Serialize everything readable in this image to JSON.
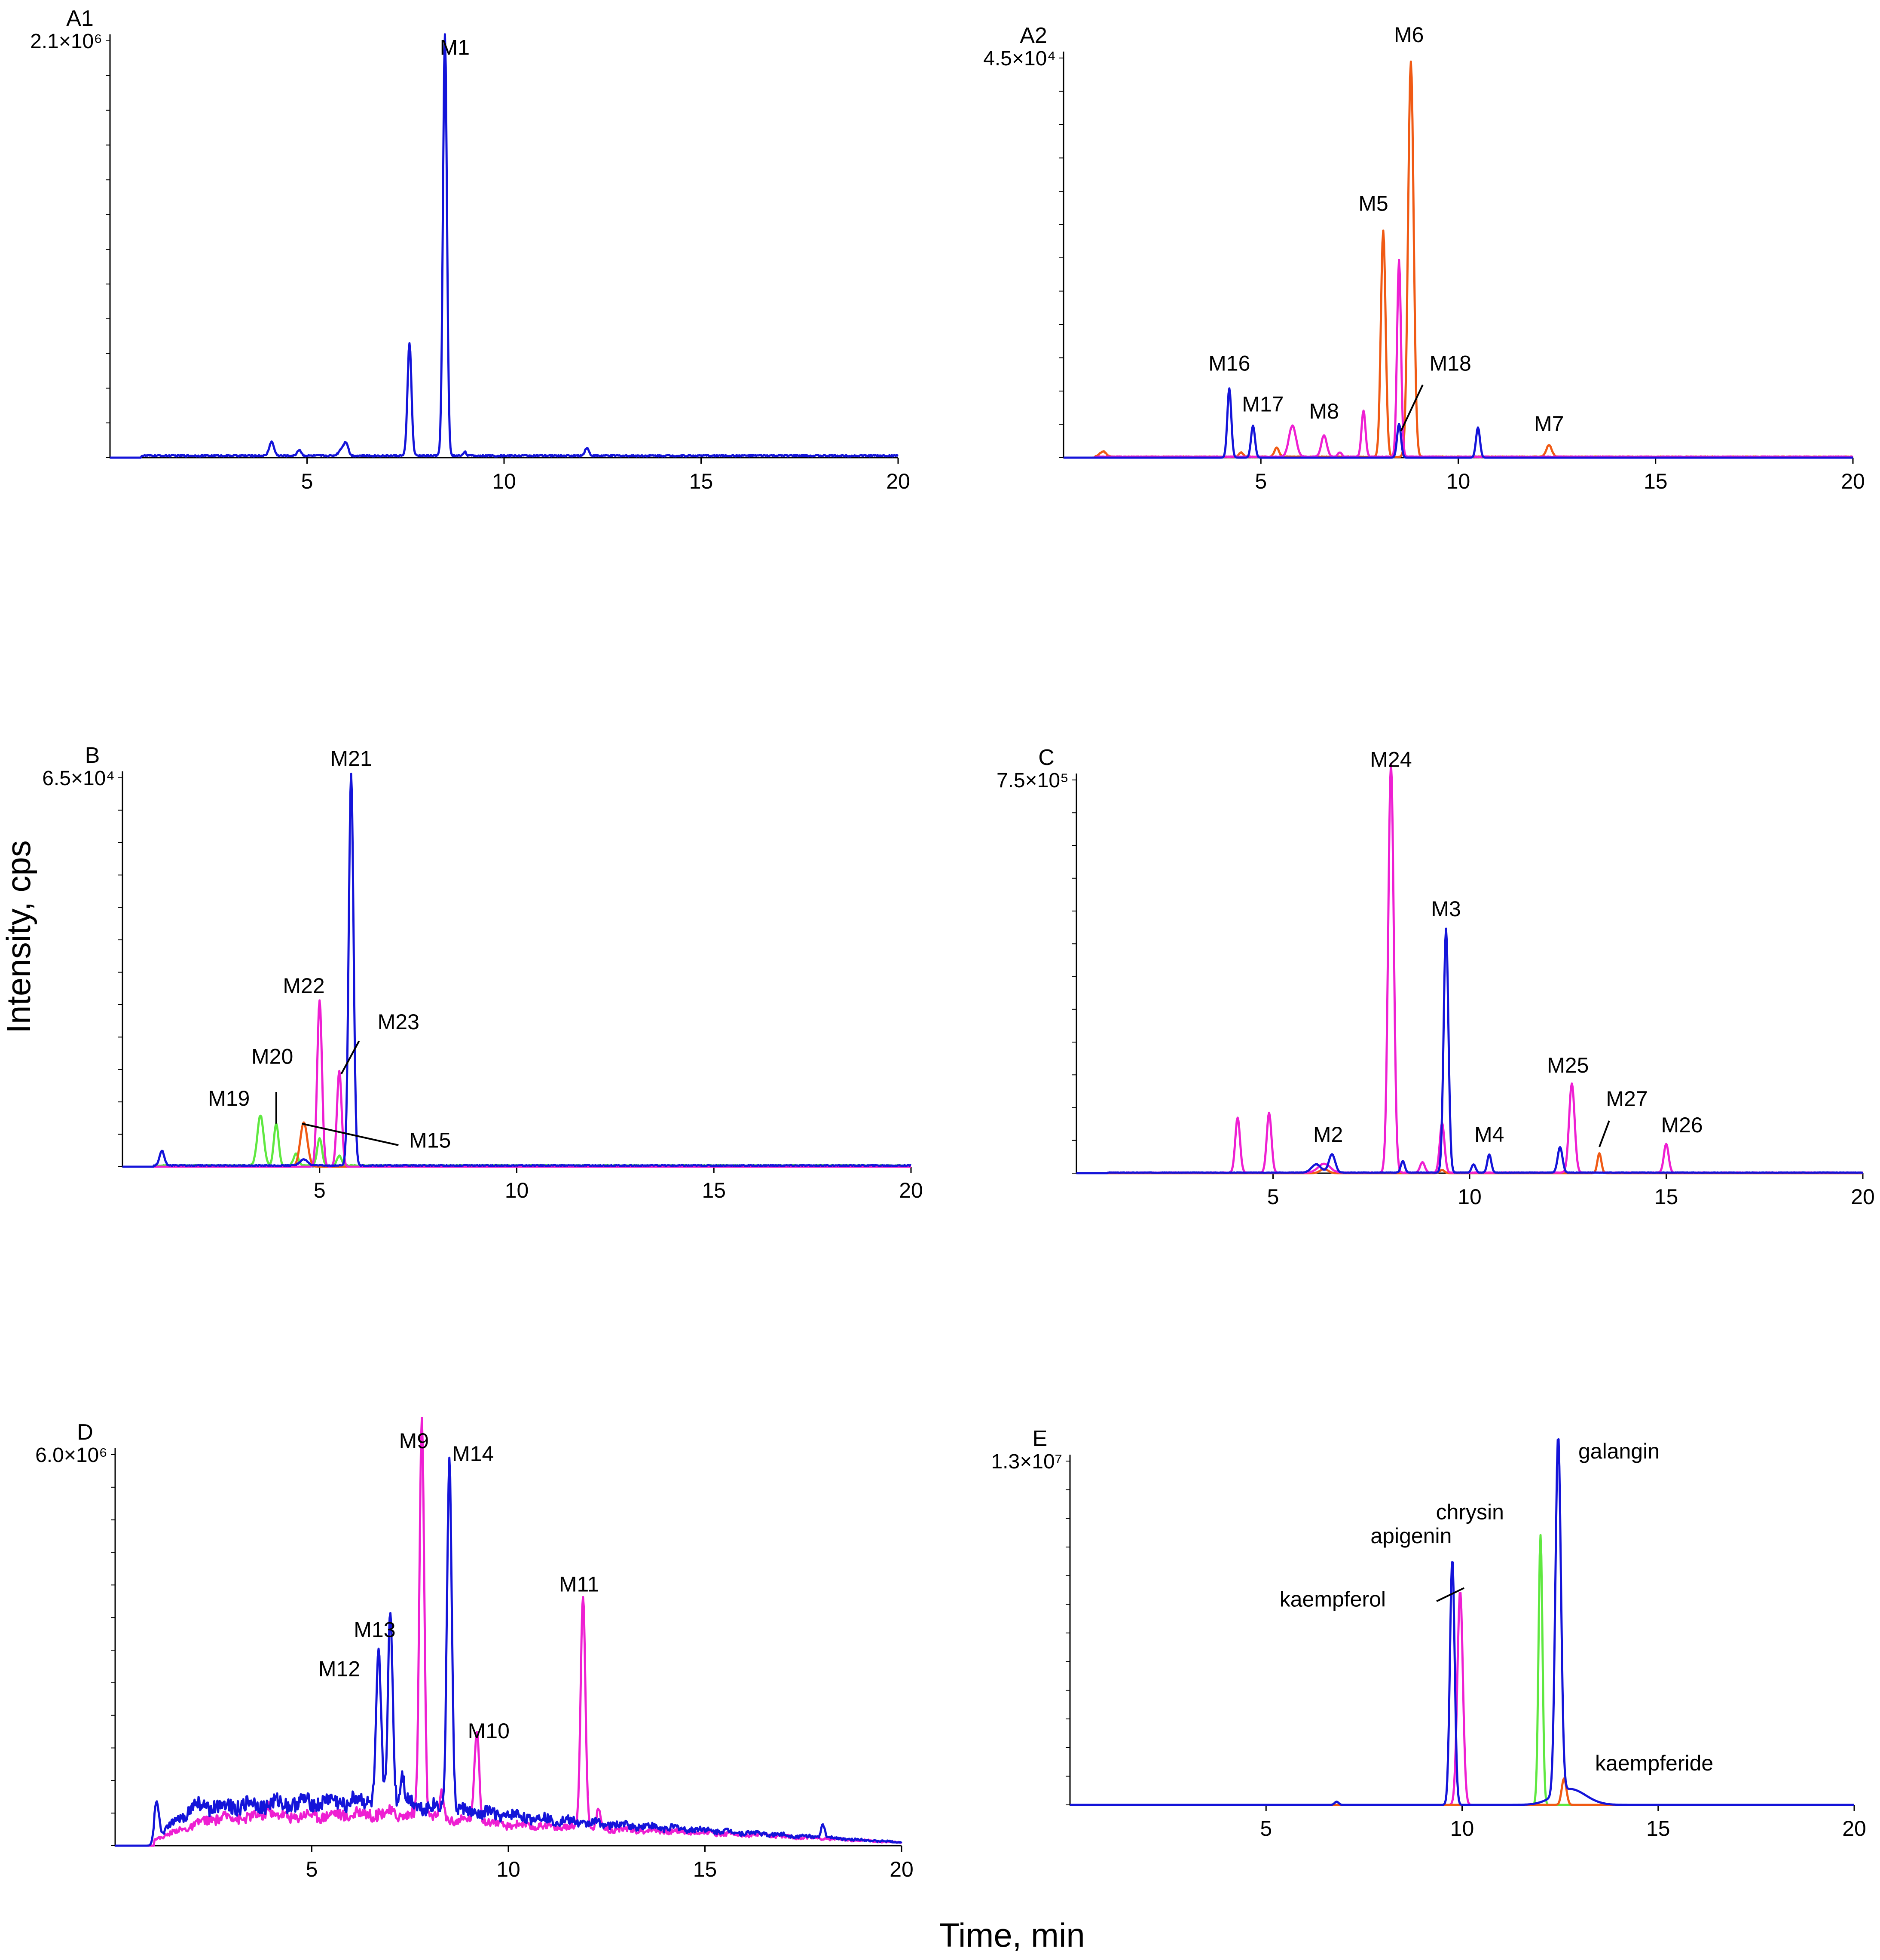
{
  "figure": {
    "y_axis_title": "Intensity, cps",
    "x_axis_title": "Time, min"
  },
  "colors": {
    "blue": "#1414d9",
    "orange": "#f05a14",
    "magenta": "#ee1fd2",
    "green": "#5fe840",
    "axis": "#000000"
  },
  "chart_data": [
    {
      "id": "A1",
      "type": "line",
      "panel_label": "A1",
      "ymax_label": "2.1×10⁶",
      "xlabel": "Time, min",
      "ylabel": "Intensity, cps",
      "xlim": [
        0,
        20
      ],
      "ylim": [
        0,
        2.1
      ],
      "x_ticks": [
        5,
        10,
        15,
        20
      ],
      "series": [
        {
          "name": "trace-blue",
          "color": "blue",
          "baseline": 0.01,
          "peaks": [
            [
              4.1,
              0.07,
              0.06
            ],
            [
              4.8,
              0.03,
              0.05
            ],
            [
              5.9,
              0.04,
              0.08
            ],
            [
              6.0,
              0.05,
              0.05
            ],
            [
              7.6,
              0.57,
              0.05
            ],
            [
              8.5,
              2.12,
              0.05
            ],
            [
              9.0,
              0.02,
              0.04
            ],
            [
              12.1,
              0.04,
              0.05
            ]
          ]
        }
      ],
      "labels": [
        {
          "text": "M1",
          "x": 8.75,
          "y": 2.03
        }
      ],
      "leaders": []
    },
    {
      "id": "A2",
      "type": "line",
      "panel_label": "A2",
      "ymax_label": "4.5×10⁴",
      "xlabel": "Time, min",
      "ylabel": "Intensity, cps",
      "xlim": [
        0,
        20
      ],
      "ylim": [
        0,
        4.5
      ],
      "x_ticks": [
        5,
        10,
        15,
        20
      ],
      "series": [
        {
          "name": "trace-orange",
          "color": "orange",
          "baseline": 0.01,
          "peaks": [
            [
              1.0,
              0.06,
              0.08
            ],
            [
              4.5,
              0.05,
              0.05
            ],
            [
              5.4,
              0.1,
              0.06
            ],
            [
              8.1,
              2.55,
              0.06
            ],
            [
              8.8,
              4.45,
              0.07
            ],
            [
              12.3,
              0.13,
              0.07
            ]
          ]
        },
        {
          "name": "trace-magenta",
          "color": "magenta",
          "baseline": 0.01,
          "peaks": [
            [
              5.8,
              0.35,
              0.09
            ],
            [
              6.6,
              0.24,
              0.07
            ],
            [
              7.0,
              0.05,
              0.05
            ],
            [
              7.6,
              0.52,
              0.05
            ],
            [
              8.5,
              2.22,
              0.05
            ]
          ]
        },
        {
          "name": "trace-blue",
          "color": "blue",
          "baseline": 0.0,
          "peaks": [
            [
              4.2,
              0.78,
              0.05
            ],
            [
              4.8,
              0.36,
              0.05
            ],
            [
              8.5,
              0.38,
              0.05
            ],
            [
              10.5,
              0.34,
              0.05
            ]
          ]
        }
      ],
      "labels": [
        {
          "text": "M6",
          "x": 8.75,
          "y": 4.68
        },
        {
          "text": "M5",
          "x": 7.85,
          "y": 2.78
        },
        {
          "text": "M16",
          "x": 4.2,
          "y": 0.98
        },
        {
          "text": "M17",
          "x": 5.05,
          "y": 0.52
        },
        {
          "text": "M8",
          "x": 6.6,
          "y": 0.44
        },
        {
          "text": "M18",
          "x": 9.8,
          "y": 0.98
        },
        {
          "text": "M7",
          "x": 12.3,
          "y": 0.3
        }
      ],
      "leaders": [
        [
          [
            9.1,
            0.82
          ],
          [
            8.55,
            0.3
          ]
        ]
      ]
    },
    {
      "id": "B",
      "type": "line",
      "panel_label": "B",
      "ymax_label": "6.5×10⁴",
      "xlabel": "Time, min",
      "ylabel": "Intensity, cps",
      "xlim": [
        0,
        20
      ],
      "ylim": [
        0,
        6.5
      ],
      "x_ticks": [
        5,
        10,
        15,
        20
      ],
      "series": [
        {
          "name": "trace-green",
          "color": "green",
          "baseline": 0.02,
          "peaks": [
            [
              3.5,
              0.84,
              0.08
            ],
            [
              3.9,
              0.7,
              0.06
            ],
            [
              4.4,
              0.2,
              0.06
            ],
            [
              5.0,
              0.46,
              0.06
            ],
            [
              5.5,
              0.16,
              0.06
            ]
          ]
        },
        {
          "name": "trace-orange",
          "color": "orange",
          "baseline": 0.0,
          "peaks": [
            [
              4.6,
              0.74,
              0.09
            ]
          ]
        },
        {
          "name": "trace-magenta",
          "color": "magenta",
          "baseline": 0.0,
          "peaks": [
            [
              5.0,
              2.78,
              0.06
            ],
            [
              5.5,
              1.6,
              0.06
            ]
          ]
        },
        {
          "name": "trace-blue",
          "color": "blue",
          "baseline": 0.02,
          "peaks": [
            [
              1.0,
              0.25,
              0.06
            ],
            [
              4.6,
              0.1,
              0.1
            ],
            [
              5.8,
              6.55,
              0.06
            ]
          ]
        }
      ],
      "labels": [
        {
          "text": "M21",
          "x": 5.8,
          "y": 6.7
        },
        {
          "text": "M22",
          "x": 4.6,
          "y": 2.9
        },
        {
          "text": "M23",
          "x": 7.0,
          "y": 2.3
        },
        {
          "text": "M20",
          "x": 3.8,
          "y": 1.72
        },
        {
          "text": "M19",
          "x": 2.7,
          "y": 1.02
        },
        {
          "text": "M15",
          "x": 7.8,
          "y": 0.32
        }
      ],
      "leaders": [
        [
          [
            6.0,
            2.1
          ],
          [
            5.55,
            1.55
          ]
        ],
        [
          [
            3.9,
            1.25
          ],
          [
            3.9,
            0.72
          ]
        ],
        [
          [
            7.0,
            0.36
          ],
          [
            4.55,
            0.72
          ]
        ]
      ]
    },
    {
      "id": "C",
      "type": "line",
      "panel_label": "C",
      "ymax_label": "7.5×10⁵",
      "xlabel": "Time, min",
      "ylabel": "Intensity, cps",
      "xlim": [
        0,
        20
      ],
      "ylim": [
        0,
        7.5
      ],
      "x_ticks": [
        5,
        10,
        15,
        20
      ],
      "series": [
        {
          "name": "trace-orange",
          "color": "orange",
          "baseline": 0.0,
          "peaks": [
            [
              6.3,
              0.08,
              0.1
            ],
            [
              9.3,
              0.06,
              0.06
            ],
            [
              13.3,
              0.38,
              0.05
            ]
          ]
        },
        {
          "name": "trace-magenta",
          "color": "magenta",
          "baseline": 0.01,
          "peaks": [
            [
              4.1,
              1.05,
              0.06
            ],
            [
              4.9,
              1.14,
              0.06
            ],
            [
              6.3,
              0.17,
              0.15
            ],
            [
              8.0,
              7.8,
              0.07
            ],
            [
              8.8,
              0.2,
              0.06
            ],
            [
              9.3,
              0.95,
              0.06
            ],
            [
              12.6,
              1.7,
              0.07
            ],
            [
              15.0,
              0.55,
              0.06
            ]
          ]
        },
        {
          "name": "trace-blue",
          "color": "blue",
          "baseline": 0.01,
          "peaks": [
            [
              6.1,
              0.16,
              0.12
            ],
            [
              6.5,
              0.35,
              0.08
            ],
            [
              8.3,
              0.22,
              0.05
            ],
            [
              9.4,
              4.65,
              0.06
            ],
            [
              10.1,
              0.16,
              0.05
            ],
            [
              10.5,
              0.35,
              0.05
            ],
            [
              12.3,
              0.49,
              0.06
            ]
          ]
        }
      ],
      "labels": [
        {
          "text": "M24",
          "x": 8.0,
          "y": 7.75
        },
        {
          "text": "M3",
          "x": 9.4,
          "y": 4.9
        },
        {
          "text": "M25",
          "x": 12.5,
          "y": 1.92
        },
        {
          "text": "M27",
          "x": 14.0,
          "y": 1.28
        },
        {
          "text": "M4",
          "x": 10.5,
          "y": 0.6
        },
        {
          "text": "M2",
          "x": 6.4,
          "y": 0.6
        },
        {
          "text": "M26",
          "x": 15.4,
          "y": 0.78
        }
      ],
      "leaders": [
        [
          [
            13.55,
            1.0
          ],
          [
            13.3,
            0.5
          ]
        ]
      ]
    },
    {
      "id": "D",
      "type": "line",
      "panel_label": "D",
      "ymax_label": "6.0×10⁶",
      "xlabel": "Time, min",
      "ylabel": "Intensity, cps",
      "xlim": [
        0,
        20
      ],
      "ylim": [
        0,
        6.0
      ],
      "x_ticks": [
        5,
        10,
        15,
        20
      ],
      "series": [
        {
          "name": "trace-magenta",
          "color": "magenta",
          "noise": [
            [
              1.0,
              0.1
            ],
            [
              2.5,
              0.42
            ],
            [
              7.0,
              0.5
            ],
            [
              10.0,
              0.32
            ],
            [
              15.0,
              0.2
            ],
            [
              20.0,
              0.05
            ]
          ],
          "peaks": [
            [
              3.9,
              0.2,
              0.06
            ],
            [
              7.8,
              6.1,
              0.06
            ],
            [
              8.3,
              0.35,
              0.05
            ],
            [
              9.2,
              1.45,
              0.06
            ],
            [
              11.9,
              3.6,
              0.06
            ],
            [
              12.3,
              0.3,
              0.05
            ]
          ]
        },
        {
          "name": "trace-blue",
          "color": "blue",
          "noise": [
            [
              1.0,
              0.1
            ],
            [
              2.0,
              0.6
            ],
            [
              4.5,
              0.65
            ],
            [
              7.0,
              0.7
            ],
            [
              8.5,
              0.55
            ],
            [
              12.0,
              0.35
            ],
            [
              16.0,
              0.2
            ],
            [
              20.0,
              0.05
            ]
          ],
          "peaks": [
            [
              1.05,
              0.55,
              0.06
            ],
            [
              6.7,
              2.2,
              0.06
            ],
            [
              7.0,
              2.85,
              0.06
            ],
            [
              7.3,
              0.45,
              0.05
            ],
            [
              8.5,
              5.4,
              0.06
            ],
            [
              18.0,
              0.2,
              0.05
            ]
          ]
        }
      ],
      "labels": [
        {
          "text": "M9",
          "x": 7.6,
          "y": 6.1
        },
        {
          "text": "M14",
          "x": 9.1,
          "y": 5.9
        },
        {
          "text": "M13",
          "x": 6.6,
          "y": 3.2
        },
        {
          "text": "M12",
          "x": 5.7,
          "y": 2.6
        },
        {
          "text": "M11",
          "x": 11.8,
          "y": 3.9
        },
        {
          "text": "M10",
          "x": 9.5,
          "y": 1.65
        }
      ],
      "leaders": []
    },
    {
      "id": "E",
      "type": "line",
      "panel_label": "E",
      "ymax_label": "1.3×10⁷",
      "xlabel": "Time, min",
      "ylabel": "Intensity, cps",
      "xlim": [
        0,
        20
      ],
      "ylim": [
        0,
        1.3
      ],
      "x_ticks": [
        5,
        10,
        15,
        20
      ],
      "series": [
        {
          "name": "trace-magenta",
          "color": "magenta",
          "baseline": 0.0,
          "peaks": [
            [
              9.95,
              0.81,
              0.07
            ]
          ]
        },
        {
          "name": "trace-green",
          "color": "green",
          "baseline": 0.0,
          "peaks": [
            [
              6.8,
              0.012,
              0.05
            ],
            [
              12.0,
              1.02,
              0.05
            ]
          ]
        },
        {
          "name": "trace-orange",
          "color": "orange",
          "baseline": 0.0,
          "peaks": [
            [
              12.6,
              0.1,
              0.06
            ]
          ]
        },
        {
          "name": "trace-blue",
          "color": "blue",
          "baseline": 0.0,
          "peaks": [
            [
              6.8,
              0.012,
              0.05
            ],
            [
              9.75,
              0.93,
              0.06
            ],
            [
              12.45,
              1.35,
              0.07
            ],
            [
              12.75,
              0.06,
              0.4
            ]
          ]
        }
      ],
      "labels": [
        {
          "text": "galangin",
          "x": 14.0,
          "y": 1.31
        },
        {
          "text": "chrysin",
          "x": 10.2,
          "y": 1.08
        },
        {
          "text": "apigenin",
          "x": 8.7,
          "y": 0.99
        },
        {
          "text": "kaempferol",
          "x": 6.7,
          "y": 0.75
        },
        {
          "text": "kaempferide",
          "x": 14.9,
          "y": 0.13
        }
      ],
      "leaders": [
        [
          [
            9.35,
            0.77
          ],
          [
            10.05,
            0.82
          ]
        ]
      ]
    }
  ]
}
